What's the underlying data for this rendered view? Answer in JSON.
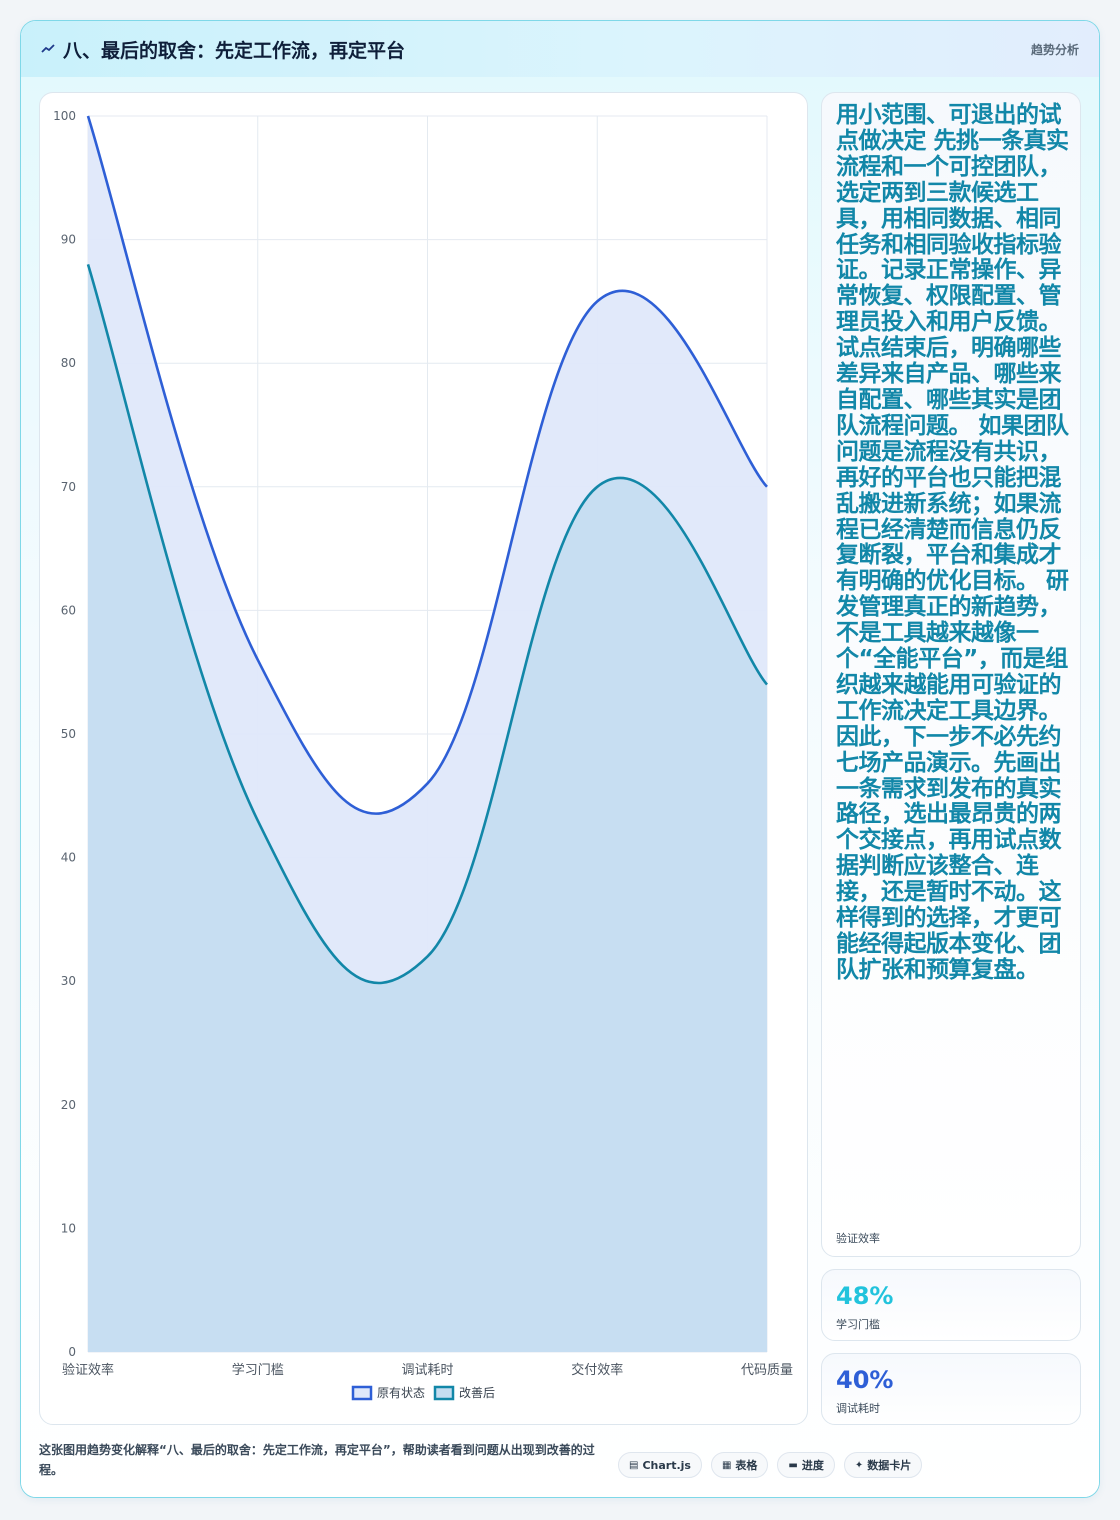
{
  "header": {
    "title": "八、最后的取舍：先定工作流，再定平台",
    "right_label": "趋势分析",
    "icon": "trend-icon"
  },
  "side": {
    "text": "用小范围、可退出的试点做决定 先挑一条真实流程和一个可控团队，选定两到三款候选工具，用相同数据、相同任务和相同验收指标验证。记录正常操作、异常恢复、权限配置、管理员投入和用户反馈。试点结束后，明确哪些差异来自产品、哪些来自配置、哪些其实是团队流程问题。 如果团队问题是流程没有共识，再好的平台也只能把混乱搬进新系统；如果流程已经清楚而信息仍反复断裂，平台和集成才有明确的优化目标。 研发管理真正的新趋势，不是工具越来越像一个“全能平台”，而是组织越来越能用可验证的工作流决定工具边界。 因此，下一步不必先约七场产品演示。先画出一条需求到发布的真实路径，选出最昂贵的两个交接点，再用试点数据判断应该整合、连接，还是暂时不动。这样得到的选择，才更可能经得起版本变化、团队扩张和预算复盘。",
    "caption": "验证效率"
  },
  "stats": [
    {
      "value": "48%",
      "label": "学习门槛",
      "color": "#22c3dc"
    },
    {
      "value": "40%",
      "label": "调试耗时",
      "color": "#2e5fd6"
    }
  ],
  "footer": {
    "text": "这张图用趋势变化解释“八、最后的取舍：先定工作流，再定平台”，帮助读者看到问题从出现到改善的过程。",
    "tags": [
      {
        "icon": "chart-icon",
        "label": "Chart.js"
      },
      {
        "icon": "table-icon",
        "label": "表格"
      },
      {
        "icon": "progress-icon",
        "label": "进度"
      },
      {
        "icon": "card-icon",
        "label": "数据卡片"
      }
    ]
  },
  "chart_data": {
    "type": "area",
    "categories": [
      "验证效率",
      "学习门槛",
      "调试耗时",
      "交付效率",
      "代码质量"
    ],
    "series": [
      {
        "name": "原有状态",
        "values": [
          100,
          56,
          46,
          85,
          70
        ],
        "color": "#2e5fd6",
        "fill": "#dfe8fa"
      },
      {
        "name": "改善后",
        "values": [
          88,
          43,
          32,
          70,
          54
        ],
        "color": "#1287a8",
        "fill": "#c5ddf1"
      }
    ],
    "ylim": [
      0,
      100
    ],
    "yticks": [
      0,
      10,
      20,
      30,
      40,
      50,
      60,
      70,
      80,
      90,
      100
    ],
    "grid": true,
    "legend": "bottom"
  }
}
